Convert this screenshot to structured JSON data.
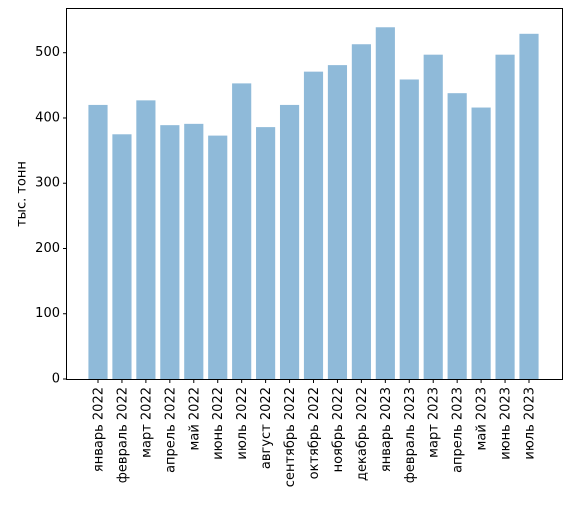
{
  "chart_data": {
    "type": "bar",
    "title": "",
    "xlabel": "",
    "ylabel": "тыс. тонн",
    "ylim": [
      0,
      567
    ],
    "yticks": [
      0,
      100,
      200,
      300,
      400,
      500
    ],
    "grid": false,
    "bar_color": "#8fbad9",
    "categories": [
      "январь 2022",
      "февраль 2022",
      "март 2022",
      "апрель 2022",
      "май 2022",
      "июнь 2022",
      "июль 2022",
      "август 2022",
      "сентябрь 2022",
      "октябрь 2022",
      "ноябрь 2022",
      "декабрь 2022",
      "январь 2023",
      "февраль 2023",
      "март 2023",
      "апрель 2023",
      "май 2023",
      "июнь 2023",
      "июль 2023"
    ],
    "values": [
      420,
      375,
      427,
      389,
      391,
      373,
      453,
      386,
      420,
      471,
      481,
      513,
      539,
      459,
      497,
      438,
      416,
      497,
      529
    ]
  }
}
